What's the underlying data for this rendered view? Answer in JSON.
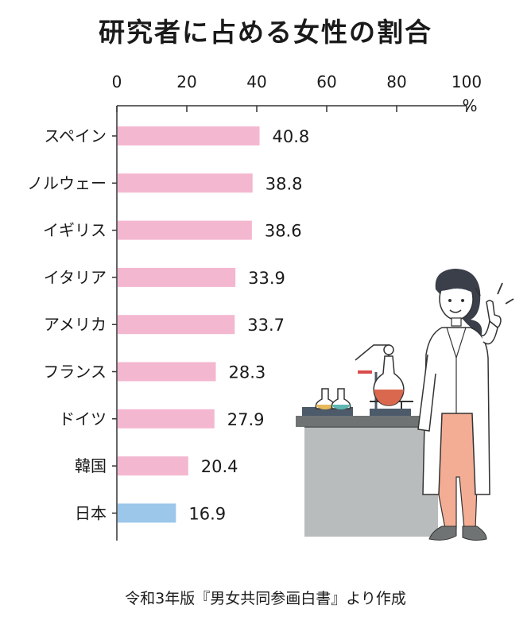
{
  "chart_data": {
    "type": "bar",
    "orientation": "horizontal",
    "title": "研究者に占める女性の割合",
    "unit": "%",
    "xlim": [
      0,
      100
    ],
    "xticks": [
      0,
      20,
      40,
      60,
      80,
      100
    ],
    "categories": [
      "スペイン",
      "ノルウェー",
      "イギリス",
      "イタリア",
      "アメリカ",
      "フランス",
      "ドイツ",
      "韓国",
      "日本"
    ],
    "values": [
      40.8,
      38.8,
      38.6,
      33.9,
      33.7,
      28.3,
      27.9,
      20.4,
      16.9
    ],
    "value_labels": [
      "40.8",
      "38.8",
      "38.6",
      "33.9",
      "33.7",
      "28.3",
      "27.9",
      "20.4",
      "16.9"
    ],
    "highlight_category": "日本",
    "grid": false,
    "colors": {
      "bar": "#f4b7d0",
      "highlight": "#9cc6ea",
      "axis": "#333333"
    }
  },
  "source": "令和3年版『男女共同参画白書』より作成",
  "illustration": "female-scientist-with-lab-flasks"
}
